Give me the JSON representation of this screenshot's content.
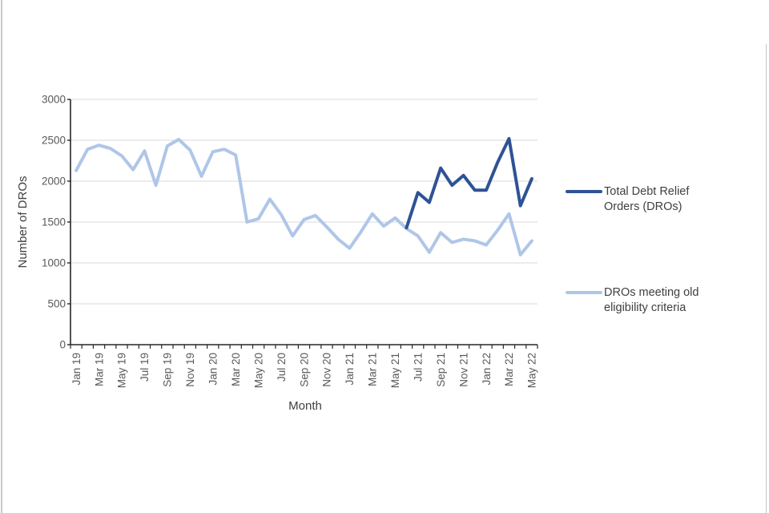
{
  "chart_data": {
    "type": "line",
    "title": "",
    "xlabel": "Month",
    "ylabel": "Number of DROs",
    "ylim": [
      0,
      3000
    ],
    "ytick_step": 500,
    "grid": true,
    "legend_position": "right",
    "x_tick_label_interval": 2,
    "categories": [
      "Jan 19",
      "Feb 19",
      "Mar 19",
      "Apr 19",
      "May 19",
      "Jun 19",
      "Jul 19",
      "Aug 19",
      "Sep 19",
      "Oct 19",
      "Nov 19",
      "Dec 19",
      "Jan 20",
      "Feb 20",
      "Mar 20",
      "Apr 20",
      "May 20",
      "Jun 20",
      "Jul 20",
      "Aug 20",
      "Sep 20",
      "Oct 20",
      "Nov 20",
      "Dec 20",
      "Jan 21",
      "Feb 21",
      "Mar 21",
      "Apr 21",
      "May 21",
      "Jun 21",
      "Jul 21",
      "Aug 21",
      "Sep 21",
      "Oct 21",
      "Nov 21",
      "Dec 21",
      "Jan 22",
      "Feb 22",
      "Mar 22",
      "Apr 22",
      "May 22"
    ],
    "series": [
      {
        "name": "Total Debt Relief Orders (DROs)",
        "color": "#2E5395",
        "stroke_width": 4,
        "values": [
          null,
          null,
          null,
          null,
          null,
          null,
          null,
          null,
          null,
          null,
          null,
          null,
          null,
          null,
          null,
          null,
          null,
          null,
          null,
          null,
          null,
          null,
          null,
          null,
          null,
          null,
          null,
          null,
          null,
          1430,
          1860,
          1740,
          2160,
          1950,
          2070,
          1890,
          1890,
          2230,
          2520,
          1700,
          2030
        ]
      },
      {
        "name": "DROs meeting old eligibility criteria",
        "color": "#AFC6E8",
        "stroke_width": 4,
        "values": [
          2130,
          2390,
          2440,
          2400,
          2310,
          2140,
          2370,
          1950,
          2430,
          2510,
          2380,
          2060,
          2360,
          2390,
          2320,
          1500,
          1540,
          1780,
          1590,
          1330,
          1530,
          1580,
          1440,
          1290,
          1180,
          1380,
          1600,
          1450,
          1550,
          1420,
          1330,
          1130,
          1370,
          1250,
          1290,
          1270,
          1220,
          1400,
          1600,
          1100,
          1270
        ]
      }
    ]
  },
  "style": {
    "gridline_color": "#D9D9D9",
    "axis_color": "#262626",
    "tick_label_color": "#595959"
  }
}
